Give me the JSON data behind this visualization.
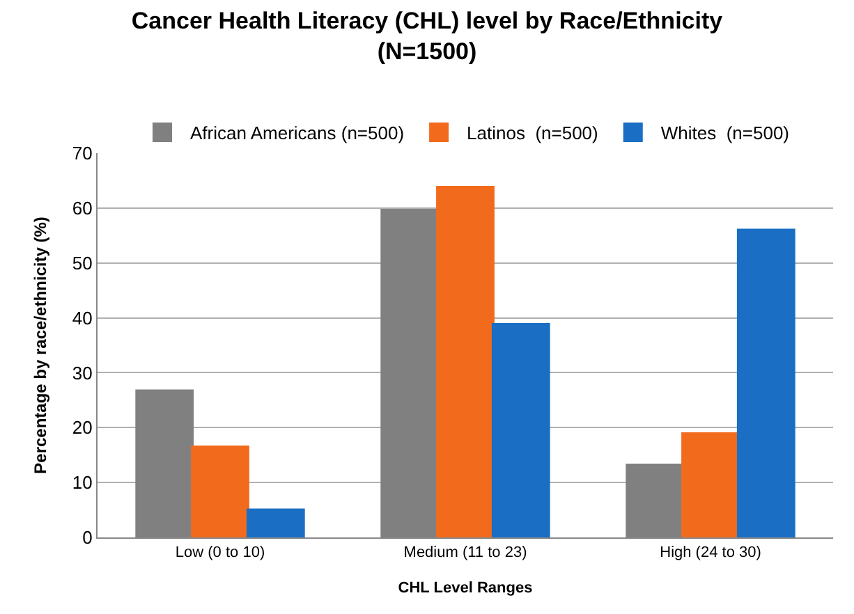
{
  "chart_data": {
    "type": "bar",
    "title": "Cancer Health Literacy (CHL) level by Race/Ethnicity\n(N=1500)",
    "xlabel": "CHL Level Ranges",
    "ylabel": "Percentage by race/ethnicity (%)",
    "categories": [
      "Low (0 to 10)",
      "Medium (11 to 23)",
      "High (24 to 30)"
    ],
    "series": [
      {
        "name": "African Americans (n=500)",
        "color": "#808080",
        "values": [
          26.7,
          59.6,
          13.2
        ]
      },
      {
        "name": "Latinos  (n=500)",
        "color": "#f26b1d",
        "values": [
          16.5,
          63.8,
          18.9
        ]
      },
      {
        "name": "Whites  (n=500)",
        "color": "#1a6fc4",
        "values": [
          5,
          38.8,
          56
        ]
      }
    ],
    "ylim": [
      0,
      70
    ],
    "yticks": [
      0,
      10,
      20,
      30,
      40,
      50,
      60,
      70
    ],
    "grid": "y",
    "legend": "top"
  }
}
